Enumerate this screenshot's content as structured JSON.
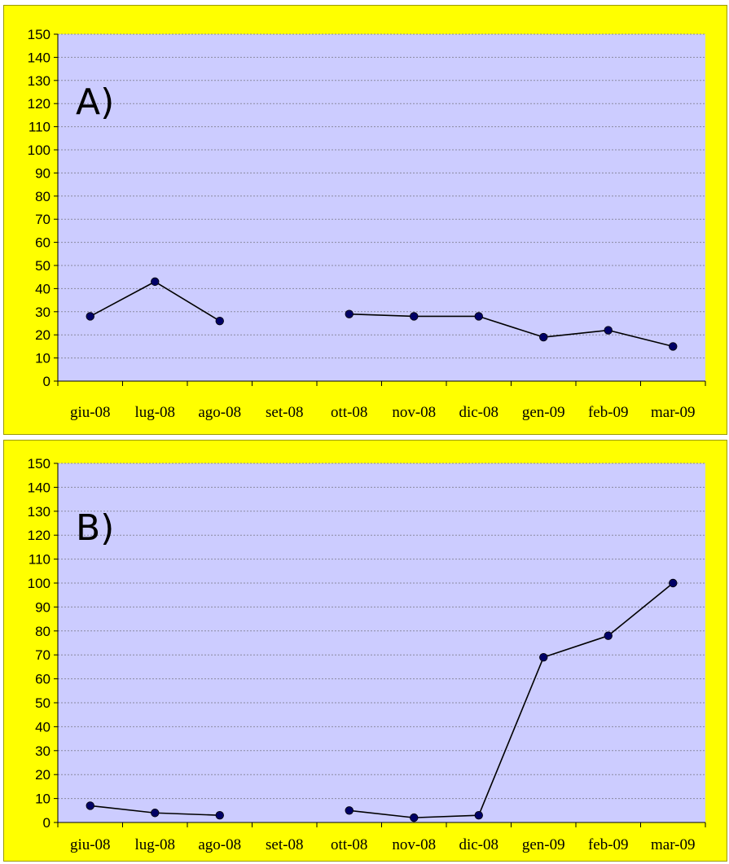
{
  "colors": {
    "panel_background": "#ffff00",
    "plot_area": "#ccccff",
    "gridline": "#8a8aa0",
    "line": "#000000",
    "marker": "#000066"
  },
  "chart_data": [
    {
      "type": "line",
      "panel_label": "A)",
      "categories": [
        "giu-08",
        "lug-08",
        "ago-08",
        "set-08",
        "ott-08",
        "nov-08",
        "dic-08",
        "gen-09",
        "feb-09",
        "mar-09"
      ],
      "values": [
        28,
        43,
        26,
        null,
        29,
        28,
        28,
        19,
        22,
        15
      ],
      "ylim": [
        0,
        150
      ],
      "ytick_step": 10,
      "grid": true,
      "legend": "none"
    },
    {
      "type": "line",
      "panel_label": "B)",
      "categories": [
        "giu-08",
        "lug-08",
        "ago-08",
        "set-08",
        "ott-08",
        "nov-08",
        "dic-08",
        "gen-09",
        "feb-09",
        "mar-09"
      ],
      "values": [
        7,
        4,
        3,
        null,
        5,
        2,
        3,
        69,
        78,
        100
      ],
      "ylim": [
        0,
        150
      ],
      "ytick_step": 10,
      "grid": true,
      "legend": "none"
    }
  ]
}
